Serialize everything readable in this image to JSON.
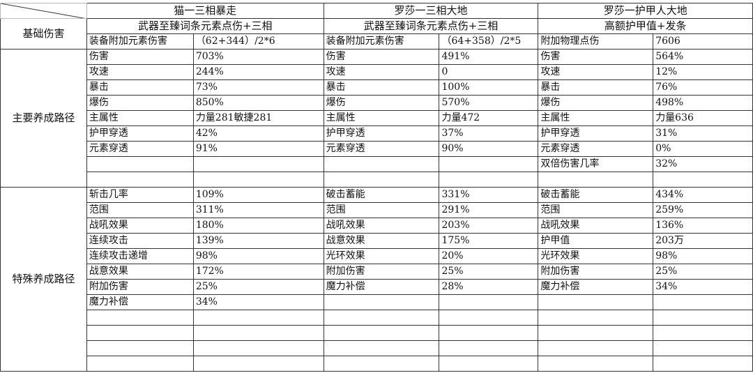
{
  "header": {
    "base_damage_label": "基础伤害",
    "groups": [
      {
        "title": "猫一三相暴走",
        "subtitle": "武器至臻词条元素点伤+三相",
        "base_label": "装备附加元素伤害",
        "base_value": "（62+344）/2*6"
      },
      {
        "title": "罗莎一三相大地",
        "subtitle": "武器至臻词条元素点伤+三相",
        "base_label": "装备附加元素伤害",
        "base_value": "（64+358）/2*5"
      },
      {
        "title": "罗莎一护甲人大地",
        "subtitle": "高额护甲值+发条",
        "base_label": "附加物理点伤",
        "base_value": "7606"
      }
    ]
  },
  "main_section": {
    "label": "主要养成路径",
    "rows": [
      [
        [
          "伤害",
          "703%"
        ],
        [
          "伤害",
          "491%"
        ],
        [
          "伤害",
          "564%"
        ]
      ],
      [
        [
          "攻速",
          "244%"
        ],
        [
          "攻速",
          "0"
        ],
        [
          "攻速",
          "12%"
        ]
      ],
      [
        [
          "暴击",
          "73%"
        ],
        [
          "暴击",
          "100%"
        ],
        [
          "暴击",
          "76%"
        ]
      ],
      [
        [
          "爆伤",
          "850%"
        ],
        [
          "爆伤",
          "570%"
        ],
        [
          "爆伤",
          "498%"
        ]
      ],
      [
        [
          "主属性",
          "力量281敏捷281"
        ],
        [
          "主属性",
          "力量472"
        ],
        [
          "主属性",
          "力量636"
        ]
      ],
      [
        [
          "护甲穿透",
          "42%"
        ],
        [
          "护甲穿透",
          "37%"
        ],
        [
          "护甲穿透",
          "31%"
        ]
      ],
      [
        [
          "元素穿透",
          "91%"
        ],
        [
          "元素穿透",
          "90%"
        ],
        [
          "元素穿透",
          "0%"
        ]
      ],
      [
        [
          "",
          ""
        ],
        [
          "",
          ""
        ],
        [
          "双倍伤害几率",
          "32%"
        ]
      ],
      [
        [
          "",
          ""
        ],
        [
          "",
          ""
        ],
        [
          "",
          ""
        ]
      ]
    ]
  },
  "special_section": {
    "label": "特殊养成路径",
    "rows": [
      [
        [
          "斩击几率",
          "109%"
        ],
        [
          "破击蓄能",
          "331%"
        ],
        [
          "破击蓄能",
          "434%"
        ]
      ],
      [
        [
          "范围",
          "311%"
        ],
        [
          "范围",
          "291%"
        ],
        [
          "范围",
          "259%"
        ]
      ],
      [
        [
          "战吼效果",
          "180%"
        ],
        [
          "战吼效果",
          "203%"
        ],
        [
          "战吼效果",
          "136%"
        ]
      ],
      [
        [
          "连续攻击",
          "139%"
        ],
        [
          "战意效果",
          "175%"
        ],
        [
          "护甲值",
          "203万"
        ]
      ],
      [
        [
          "连续攻击递增",
          "98%"
        ],
        [
          "光环效果",
          "20%"
        ],
        [
          "光环效果",
          "98%"
        ]
      ],
      [
        [
          "战意效果",
          "172%"
        ],
        [
          "附加伤害",
          "25%"
        ],
        [
          "附加伤害",
          "25%"
        ]
      ],
      [
        [
          "附加伤害",
          "25%"
        ],
        [
          "魔力补偿",
          "28%"
        ],
        [
          "魔力补偿",
          "34%"
        ]
      ],
      [
        [
          "魔力补偿",
          "34%"
        ],
        [
          "",
          ""
        ],
        [
          "",
          ""
        ]
      ],
      [
        [
          "",
          ""
        ],
        [
          "",
          ""
        ],
        [
          "",
          ""
        ]
      ],
      [
        [
          "",
          ""
        ],
        [
          "",
          ""
        ],
        [
          "",
          ""
        ]
      ],
      [
        [
          "",
          ""
        ],
        [
          "",
          ""
        ],
        [
          "",
          ""
        ]
      ],
      [
        [
          "",
          ""
        ],
        [
          "",
          ""
        ],
        [
          "",
          ""
        ]
      ]
    ]
  }
}
